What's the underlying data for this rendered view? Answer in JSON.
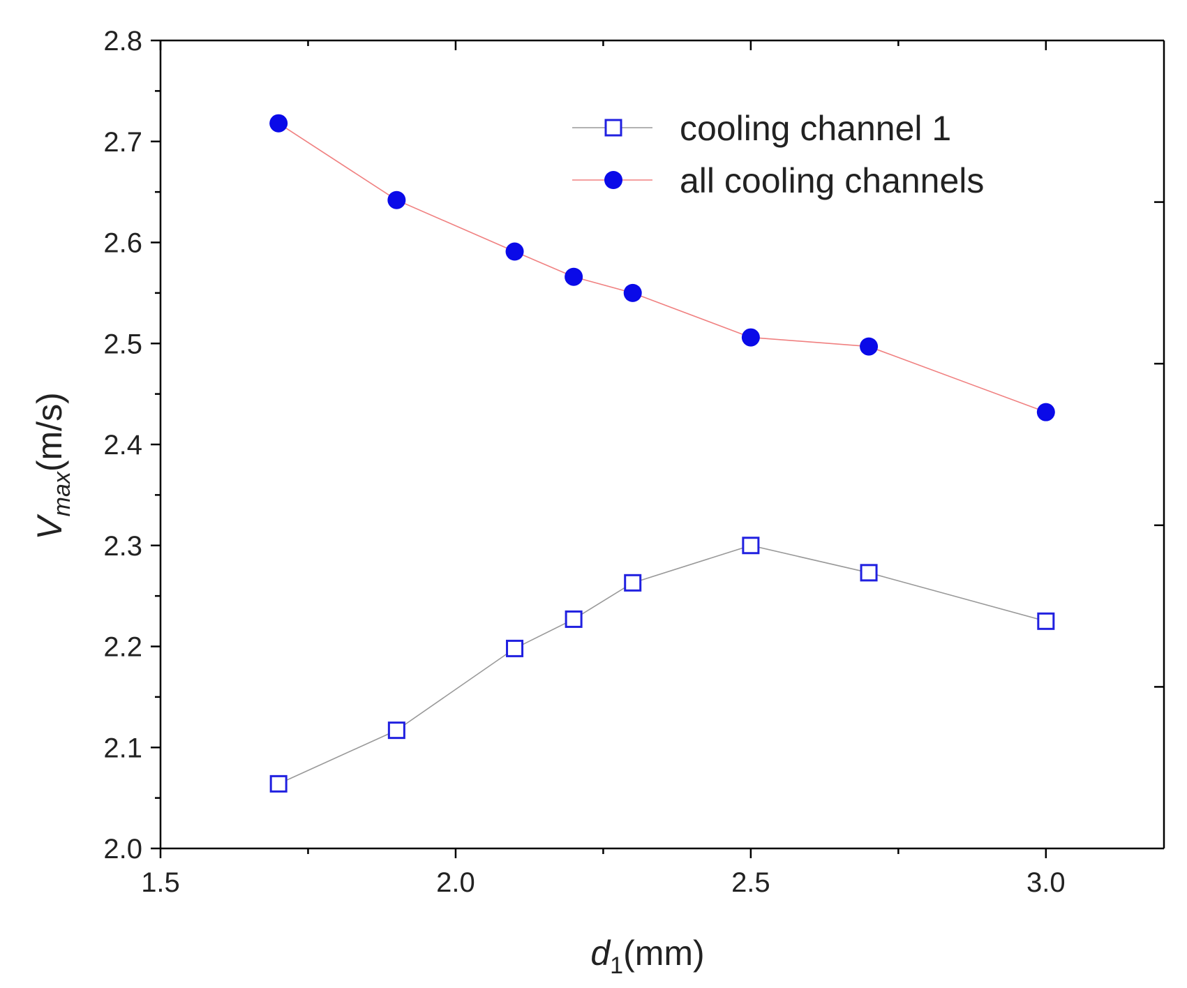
{
  "chart_data": {
    "type": "line",
    "x": [
      1.7,
      1.9,
      2.1,
      2.2,
      2.3,
      2.5,
      2.7,
      3.0
    ],
    "series": [
      {
        "name": "cooling channel 1",
        "values": [
          2.064,
          2.117,
          2.198,
          2.227,
          2.263,
          2.3,
          2.273,
          2.225
        ],
        "marker": "open-square",
        "marker_color": "#2020e0",
        "line_color": "#999999"
      },
      {
        "name": "all cooling channels",
        "values": [
          2.718,
          2.642,
          2.591,
          2.566,
          2.55,
          2.506,
          2.497,
          2.432
        ],
        "marker": "filled-circle",
        "marker_color": "#0a0ae8",
        "line_color": "#f08080"
      }
    ],
    "xlim": [
      1.5,
      3.2
    ],
    "ylim": [
      2.0,
      2.8
    ],
    "x_major_ticks": [
      1.5,
      2.0,
      2.5,
      3.0
    ],
    "x_tick_labels": [
      "1.5",
      "2.0",
      "2.5",
      "3.0"
    ],
    "y_major_ticks": [
      2.0,
      2.1,
      2.2,
      2.3,
      2.4,
      2.5,
      2.6,
      2.7,
      2.8
    ],
    "y_tick_labels": [
      "2.0",
      "2.1",
      "2.2",
      "2.3",
      "2.4",
      "2.5",
      "2.6",
      "2.7",
      "2.8"
    ],
    "xlabel": {
      "main": "d",
      "sub": "1",
      "unit": "(mm)"
    },
    "ylabel": {
      "main": "V",
      "sub": "max",
      "unit": "(m/s)"
    },
    "legend_position": "top-right",
    "grid": false
  }
}
